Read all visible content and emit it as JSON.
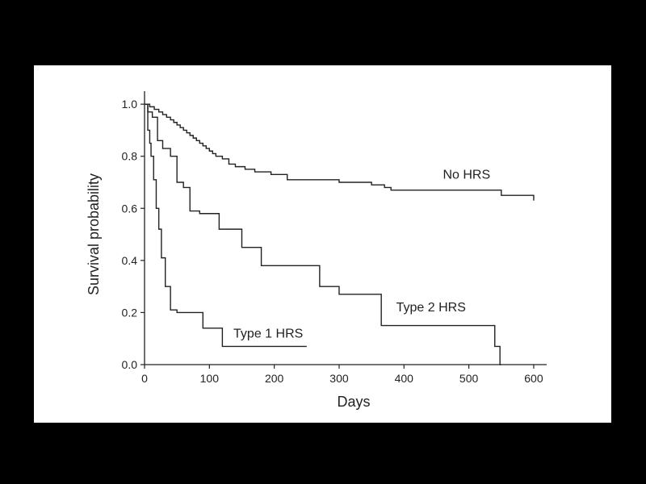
{
  "chart_data": {
    "type": "line",
    "step": true,
    "title": "",
    "xlabel": "Days",
    "ylabel": "Survival probability",
    "xlim": [
      0,
      620
    ],
    "ylim": [
      0,
      1.05
    ],
    "xticks": [
      0,
      100,
      200,
      300,
      400,
      500,
      600
    ],
    "xtick_labels": [
      "0",
      "100",
      "200",
      "300",
      "400",
      "500",
      "600"
    ],
    "yticks": [
      0,
      0.2,
      0.4,
      0.6,
      0.8,
      1.0
    ],
    "ytick_labels": [
      "0.0",
      "0.2",
      "0.4",
      "0.6",
      "0.8",
      "1.0"
    ],
    "grid": false,
    "legend": "none",
    "line_color": "#222222",
    "series": [
      {
        "name": "No HRS",
        "x": [
          0,
          8,
          15,
          22,
          28,
          34,
          40,
          45,
          50,
          55,
          60,
          65,
          70,
          75,
          80,
          85,
          90,
          95,
          100,
          105,
          110,
          120,
          130,
          140,
          155,
          170,
          195,
          220,
          300,
          350,
          370,
          380,
          550,
          600
        ],
        "y": [
          1.0,
          0.99,
          0.98,
          0.97,
          0.96,
          0.95,
          0.94,
          0.93,
          0.92,
          0.91,
          0.9,
          0.89,
          0.88,
          0.87,
          0.86,
          0.85,
          0.84,
          0.83,
          0.82,
          0.81,
          0.8,
          0.79,
          0.77,
          0.76,
          0.75,
          0.74,
          0.73,
          0.71,
          0.7,
          0.69,
          0.68,
          0.67,
          0.65,
          0.63
        ],
        "label_position": [
          460,
          0.73
        ]
      },
      {
        "name": "Type 2 HRS",
        "x": [
          0,
          5,
          12,
          20,
          28,
          40,
          50,
          60,
          70,
          85,
          115,
          150,
          180,
          270,
          300,
          365,
          540,
          548,
          550
        ],
        "y": [
          1.0,
          0.97,
          0.95,
          0.86,
          0.83,
          0.8,
          0.7,
          0.68,
          0.59,
          0.58,
          0.52,
          0.45,
          0.38,
          0.3,
          0.27,
          0.15,
          0.07,
          0.0,
          0.0
        ],
        "label_position": [
          388,
          0.22
        ]
      },
      {
        "name": "Type 1 HRS",
        "x": [
          0,
          5,
          8,
          10,
          14,
          18,
          22,
          26,
          32,
          40,
          50,
          90,
          120,
          250
        ],
        "y": [
          1.0,
          0.9,
          0.85,
          0.8,
          0.71,
          0.6,
          0.52,
          0.41,
          0.3,
          0.21,
          0.2,
          0.14,
          0.07,
          0.07
        ],
        "label_position": [
          137,
          0.12
        ]
      }
    ]
  }
}
